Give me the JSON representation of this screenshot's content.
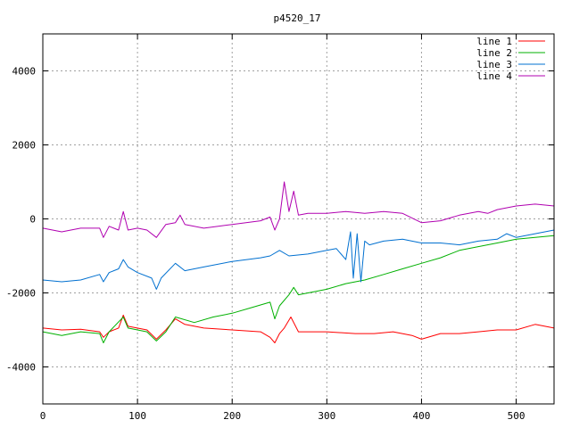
{
  "chart_data": {
    "type": "line",
    "title": "p4520_17",
    "xlabel": "",
    "ylabel": "",
    "xlim": [
      0,
      540
    ],
    "ylim": [
      -5000,
      5000
    ],
    "xticks": [
      0,
      100,
      200,
      300,
      400,
      500
    ],
    "yticks": [
      -4000,
      -2000,
      0,
      2000,
      4000
    ],
    "grid": true,
    "legend_position": "top-right",
    "series": [
      {
        "name": "line 1",
        "color": "#ff0000",
        "points": [
          [
            0,
            -2950
          ],
          [
            20,
            -3000
          ],
          [
            40,
            -2980
          ],
          [
            60,
            -3050
          ],
          [
            64,
            -3200
          ],
          [
            70,
            -3050
          ],
          [
            80,
            -2950
          ],
          [
            85,
            -2600
          ],
          [
            90,
            -2900
          ],
          [
            110,
            -3000
          ],
          [
            120,
            -3250
          ],
          [
            130,
            -3000
          ],
          [
            140,
            -2700
          ],
          [
            150,
            -2850
          ],
          [
            170,
            -2950
          ],
          [
            200,
            -3000
          ],
          [
            230,
            -3050
          ],
          [
            240,
            -3200
          ],
          [
            245,
            -3350
          ],
          [
            250,
            -3100
          ],
          [
            255,
            -2950
          ],
          [
            262,
            -2650
          ],
          [
            270,
            -3050
          ],
          [
            300,
            -3050
          ],
          [
            330,
            -3100
          ],
          [
            350,
            -3100
          ],
          [
            370,
            -3050
          ],
          [
            390,
            -3150
          ],
          [
            400,
            -3250
          ],
          [
            420,
            -3100
          ],
          [
            440,
            -3100
          ],
          [
            460,
            -3050
          ],
          [
            480,
            -3000
          ],
          [
            500,
            -3000
          ],
          [
            520,
            -2850
          ],
          [
            540,
            -2950
          ]
        ]
      },
      {
        "name": "line 2",
        "color": "#00b000",
        "points": [
          [
            0,
            -3050
          ],
          [
            20,
            -3150
          ],
          [
            40,
            -3050
          ],
          [
            60,
            -3100
          ],
          [
            64,
            -3350
          ],
          [
            70,
            -3050
          ],
          [
            85,
            -2650
          ],
          [
            90,
            -2950
          ],
          [
            110,
            -3050
          ],
          [
            120,
            -3300
          ],
          [
            130,
            -3050
          ],
          [
            140,
            -2650
          ],
          [
            160,
            -2800
          ],
          [
            180,
            -2650
          ],
          [
            200,
            -2550
          ],
          [
            220,
            -2400
          ],
          [
            240,
            -2250
          ],
          [
            245,
            -2700
          ],
          [
            250,
            -2350
          ],
          [
            260,
            -2050
          ],
          [
            265,
            -1850
          ],
          [
            270,
            -2050
          ],
          [
            300,
            -1900
          ],
          [
            320,
            -1750
          ],
          [
            340,
            -1650
          ],
          [
            360,
            -1500
          ],
          [
            380,
            -1350
          ],
          [
            400,
            -1200
          ],
          [
            420,
            -1050
          ],
          [
            440,
            -850
          ],
          [
            460,
            -750
          ],
          [
            480,
            -650
          ],
          [
            500,
            -550
          ],
          [
            520,
            -500
          ],
          [
            540,
            -450
          ]
        ]
      },
      {
        "name": "line 3",
        "color": "#0070d0",
        "points": [
          [
            0,
            -1650
          ],
          [
            20,
            -1700
          ],
          [
            40,
            -1650
          ],
          [
            60,
            -1500
          ],
          [
            64,
            -1700
          ],
          [
            70,
            -1450
          ],
          [
            80,
            -1350
          ],
          [
            85,
            -1100
          ],
          [
            90,
            -1300
          ],
          [
            100,
            -1450
          ],
          [
            115,
            -1600
          ],
          [
            120,
            -1900
          ],
          [
            125,
            -1600
          ],
          [
            140,
            -1200
          ],
          [
            150,
            -1400
          ],
          [
            170,
            -1300
          ],
          [
            200,
            -1150
          ],
          [
            230,
            -1050
          ],
          [
            240,
            -1000
          ],
          [
            250,
            -850
          ],
          [
            260,
            -1000
          ],
          [
            280,
            -950
          ],
          [
            300,
            -850
          ],
          [
            310,
            -800
          ],
          [
            320,
            -1100
          ],
          [
            325,
            -350
          ],
          [
            328,
            -1600
          ],
          [
            332,
            -400
          ],
          [
            336,
            -1700
          ],
          [
            340,
            -600
          ],
          [
            345,
            -700
          ],
          [
            360,
            -600
          ],
          [
            380,
            -550
          ],
          [
            400,
            -650
          ],
          [
            420,
            -650
          ],
          [
            440,
            -700
          ],
          [
            460,
            -600
          ],
          [
            480,
            -550
          ],
          [
            490,
            -400
          ],
          [
            500,
            -500
          ],
          [
            520,
            -400
          ],
          [
            540,
            -300
          ]
        ]
      },
      {
        "name": "line 4",
        "color": "#b000b0",
        "points": [
          [
            0,
            -250
          ],
          [
            20,
            -350
          ],
          [
            40,
            -250
          ],
          [
            60,
            -250
          ],
          [
            64,
            -500
          ],
          [
            70,
            -200
          ],
          [
            80,
            -300
          ],
          [
            85,
            200
          ],
          [
            90,
            -300
          ],
          [
            100,
            -250
          ],
          [
            110,
            -300
          ],
          [
            120,
            -500
          ],
          [
            130,
            -150
          ],
          [
            140,
            -100
          ],
          [
            145,
            100
          ],
          [
            150,
            -150
          ],
          [
            170,
            -250
          ],
          [
            200,
            -150
          ],
          [
            230,
            -50
          ],
          [
            240,
            50
          ],
          [
            245,
            -300
          ],
          [
            250,
            0
          ],
          [
            255,
            1000
          ],
          [
            260,
            200
          ],
          [
            265,
            750
          ],
          [
            270,
            100
          ],
          [
            280,
            150
          ],
          [
            300,
            150
          ],
          [
            320,
            200
          ],
          [
            340,
            150
          ],
          [
            360,
            200
          ],
          [
            380,
            150
          ],
          [
            400,
            -100
          ],
          [
            420,
            -50
          ],
          [
            440,
            100
          ],
          [
            460,
            200
          ],
          [
            470,
            150
          ],
          [
            480,
            250
          ],
          [
            500,
            350
          ],
          [
            520,
            400
          ],
          [
            540,
            350
          ]
        ]
      }
    ]
  }
}
